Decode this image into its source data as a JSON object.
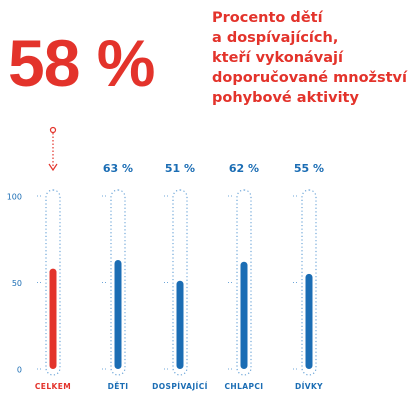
{
  "headline": {
    "value": "58 %",
    "lines": [
      "Procento dětí",
      "a dospívajících,",
      "kteří vykonávají",
      "doporučované množství",
      "pohybové aktivity"
    ]
  },
  "colors": {
    "red": "#e3332b",
    "blue": "#1b6db4",
    "dots": "#6fa7d9"
  },
  "chart_data": {
    "type": "bar",
    "categories": [
      "CELKEM",
      "DĚTI",
      "DOSPÍVAJÍCÍ",
      "CHLAPCI",
      "DÍVKY"
    ],
    "values": [
      58,
      63,
      51,
      62,
      55
    ],
    "value_labels": [
      "",
      "63 %",
      "51 %",
      "62 %",
      "55 %"
    ],
    "highlight": [
      "red",
      "blue",
      "blue",
      "blue",
      "blue"
    ],
    "y_ticks": [
      0,
      50,
      100
    ],
    "y_tick_labels": [
      "0",
      "50",
      "100"
    ],
    "ylim": [
      0,
      100
    ],
    "grid": false,
    "legend": "none"
  }
}
